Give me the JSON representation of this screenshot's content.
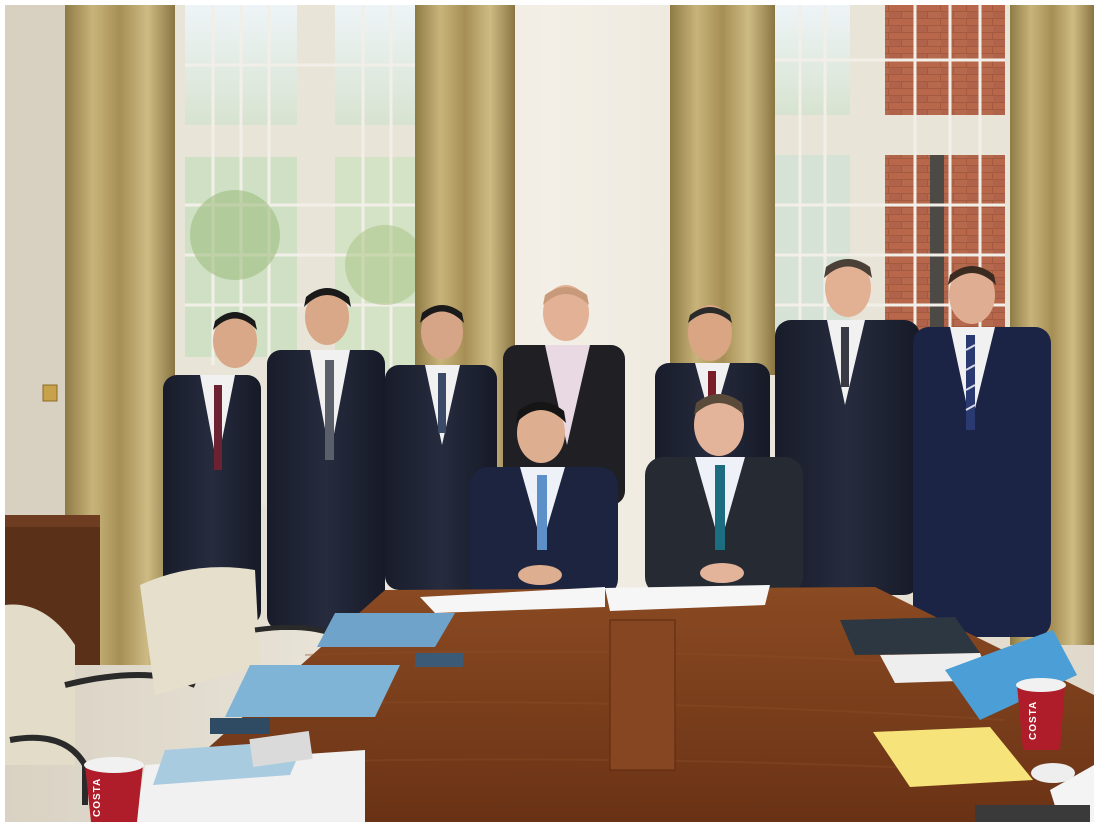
{
  "photo": {
    "cup_brand_left": "COSTA",
    "cup_brand_right": "COSTA"
  },
  "colors": {
    "wall": "#ece7dc",
    "curtain": "#b9a36a",
    "table": "#7a3f1c",
    "suit": "#1d2133",
    "cup": "#b01d2a"
  }
}
